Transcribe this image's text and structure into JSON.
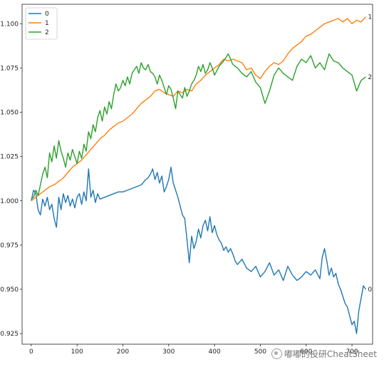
{
  "chart_data": {
    "type": "line",
    "title": "",
    "xlabel": "",
    "ylabel": "",
    "xlim": [
      -20,
      745
    ],
    "ylim": [
      0.919,
      1.111
    ],
    "x_ticks": [
      0,
      100,
      200,
      300,
      400,
      500,
      600,
      700
    ],
    "y_ticks": [
      0.925,
      0.95,
      0.975,
      1.0,
      1.025,
      1.05,
      1.075,
      1.1
    ],
    "y_tick_labels": [
      "0.925",
      "0.950",
      "0.975",
      "1.000",
      "1.025",
      "1.050",
      "1.075",
      "1.100"
    ],
    "grid": false,
    "legend": "top-left",
    "series": [
      {
        "name": "0",
        "color": "#1f77b4",
        "end_label": "0",
        "x": [
          0,
          5,
          10,
          15,
          20,
          25,
          30,
          35,
          40,
          45,
          50,
          55,
          60,
          65,
          70,
          75,
          80,
          85,
          90,
          95,
          100,
          105,
          110,
          115,
          120,
          125,
          130,
          135,
          140,
          145,
          150,
          160,
          170,
          180,
          190,
          200,
          210,
          220,
          230,
          240,
          250,
          255,
          260,
          265,
          270,
          275,
          280,
          285,
          290,
          295,
          300,
          305,
          310,
          315,
          320,
          325,
          330,
          335,
          340,
          345,
          350,
          355,
          360,
          365,
          370,
          375,
          380,
          385,
          390,
          395,
          400,
          405,
          410,
          415,
          420,
          425,
          430,
          435,
          440,
          445,
          450,
          460,
          470,
          480,
          490,
          500,
          510,
          520,
          530,
          540,
          550,
          560,
          570,
          580,
          590,
          600,
          610,
          620,
          630,
          635,
          640,
          645,
          650,
          655,
          660,
          665,
          670,
          675,
          680,
          685,
          690,
          695,
          700,
          705,
          710,
          715,
          720,
          725,
          730
        ],
        "values": [
          1.0,
          1.006,
          1.004,
          0.995,
          0.992,
          1.001,
          0.997,
          1.002,
          0.995,
          0.998,
          0.99,
          0.985,
          1.002,
          0.995,
          1.004,
          0.999,
          1.003,
          0.997,
          1.001,
          0.996,
          1.002,
          1.004,
          0.998,
          1.005,
          1.0,
          1.018,
          1.002,
          1.006,
          0.999,
          1.004,
          1.001,
          1.002,
          1.003,
          1.004,
          1.005,
          1.005,
          1.006,
          1.007,
          1.008,
          1.009,
          1.012,
          1.013,
          1.015,
          1.018,
          1.012,
          1.016,
          1.01,
          1.014,
          1.005,
          1.008,
          1.012,
          1.019,
          1.01,
          1.006,
          1.002,
          0.997,
          0.992,
          0.99,
          0.978,
          0.965,
          0.98,
          0.973,
          0.977,
          0.984,
          0.979,
          0.986,
          0.989,
          0.983,
          0.991,
          0.982,
          0.986,
          0.981,
          0.978,
          0.976,
          0.972,
          0.974,
          0.971,
          0.973,
          0.97,
          0.966,
          0.964,
          0.967,
          0.962,
          0.96,
          0.963,
          0.957,
          0.96,
          0.965,
          0.958,
          0.961,
          0.955,
          0.963,
          0.958,
          0.955,
          0.957,
          0.96,
          0.958,
          0.961,
          0.956,
          0.968,
          0.973,
          0.966,
          0.958,
          0.962,
          0.957,
          0.959,
          0.953,
          0.95,
          0.946,
          0.942,
          0.94,
          0.935,
          0.93,
          0.932,
          0.925,
          0.938,
          0.945,
          0.952,
          0.95
        ]
      },
      {
        "name": "1",
        "color": "#ff7f0e",
        "end_label": "1",
        "x": [
          0,
          10,
          20,
          30,
          40,
          50,
          60,
          70,
          80,
          90,
          100,
          110,
          120,
          130,
          140,
          150,
          160,
          170,
          180,
          190,
          200,
          210,
          220,
          230,
          240,
          250,
          260,
          270,
          280,
          290,
          300,
          310,
          320,
          330,
          340,
          350,
          360,
          370,
          380,
          390,
          400,
          410,
          420,
          430,
          440,
          450,
          460,
          470,
          480,
          490,
          500,
          510,
          520,
          530,
          540,
          550,
          560,
          570,
          580,
          590,
          600,
          610,
          620,
          630,
          640,
          650,
          660,
          670,
          680,
          690,
          700,
          710,
          720,
          730
        ],
        "values": [
          1.0,
          1.002,
          1.004,
          1.006,
          1.008,
          1.009,
          1.011,
          1.013,
          1.016,
          1.019,
          1.021,
          1.023,
          1.026,
          1.029,
          1.032,
          1.035,
          1.037,
          1.04,
          1.042,
          1.044,
          1.045,
          1.047,
          1.049,
          1.052,
          1.055,
          1.057,
          1.059,
          1.062,
          1.063,
          1.061,
          1.06,
          1.059,
          1.062,
          1.061,
          1.063,
          1.062,
          1.066,
          1.068,
          1.071,
          1.073,
          1.075,
          1.077,
          1.08,
          1.079,
          1.08,
          1.079,
          1.078,
          1.074,
          1.075,
          1.071,
          1.069,
          1.073,
          1.076,
          1.078,
          1.077,
          1.079,
          1.083,
          1.086,
          1.088,
          1.09,
          1.093,
          1.094,
          1.096,
          1.098,
          1.1,
          1.101,
          1.102,
          1.103,
          1.101,
          1.103,
          1.1,
          1.102,
          1.101,
          1.104
        ]
      },
      {
        "name": "2",
        "color": "#2ca02c",
        "end_label": "2",
        "x": [
          0,
          5,
          10,
          15,
          20,
          25,
          30,
          35,
          40,
          45,
          50,
          55,
          60,
          65,
          70,
          75,
          80,
          85,
          90,
          95,
          100,
          105,
          110,
          115,
          120,
          125,
          130,
          135,
          140,
          145,
          150,
          155,
          160,
          165,
          170,
          175,
          180,
          185,
          190,
          195,
          200,
          205,
          210,
          215,
          220,
          225,
          230,
          235,
          240,
          245,
          250,
          255,
          260,
          265,
          270,
          275,
          280,
          285,
          290,
          295,
          300,
          305,
          310,
          315,
          320,
          325,
          330,
          335,
          340,
          345,
          350,
          355,
          360,
          365,
          370,
          375,
          380,
          385,
          390,
          395,
          400,
          410,
          420,
          430,
          440,
          450,
          460,
          470,
          480,
          490,
          500,
          510,
          520,
          530,
          540,
          550,
          560,
          570,
          580,
          590,
          600,
          610,
          620,
          630,
          640,
          650,
          660,
          670,
          680,
          690,
          700,
          710,
          720,
          730
        ],
        "values": [
          1.001,
          1.002,
          1.006,
          1.003,
          1.009,
          1.015,
          1.019,
          1.013,
          1.027,
          1.022,
          1.031,
          1.024,
          1.034,
          1.028,
          1.024,
          1.019,
          1.027,
          1.023,
          1.029,
          1.025,
          1.021,
          1.028,
          1.024,
          1.032,
          1.028,
          1.039,
          1.035,
          1.043,
          1.039,
          1.047,
          1.051,
          1.045,
          1.053,
          1.049,
          1.056,
          1.052,
          1.06,
          1.066,
          1.062,
          1.064,
          1.068,
          1.065,
          1.07,
          1.066,
          1.072,
          1.074,
          1.076,
          1.072,
          1.078,
          1.075,
          1.074,
          1.077,
          1.073,
          1.072,
          1.07,
          1.066,
          1.071,
          1.068,
          1.064,
          1.06,
          1.065,
          1.063,
          1.058,
          1.052,
          1.062,
          1.06,
          1.058,
          1.064,
          1.059,
          1.062,
          1.066,
          1.068,
          1.071,
          1.076,
          1.073,
          1.077,
          1.072,
          1.074,
          1.078,
          1.075,
          1.071,
          1.076,
          1.079,
          1.083,
          1.077,
          1.075,
          1.072,
          1.07,
          1.073,
          1.067,
          1.064,
          1.055,
          1.062,
          1.071,
          1.075,
          1.072,
          1.07,
          1.068,
          1.076,
          1.08,
          1.078,
          1.082,
          1.075,
          1.078,
          1.074,
          1.083,
          1.079,
          1.078,
          1.075,
          1.073,
          1.071,
          1.062,
          1.068,
          1.07
        ]
      }
    ]
  },
  "watermark": {
    "icon": "wechat-icon",
    "text": "嘟嘟的投研CheatSheet"
  }
}
